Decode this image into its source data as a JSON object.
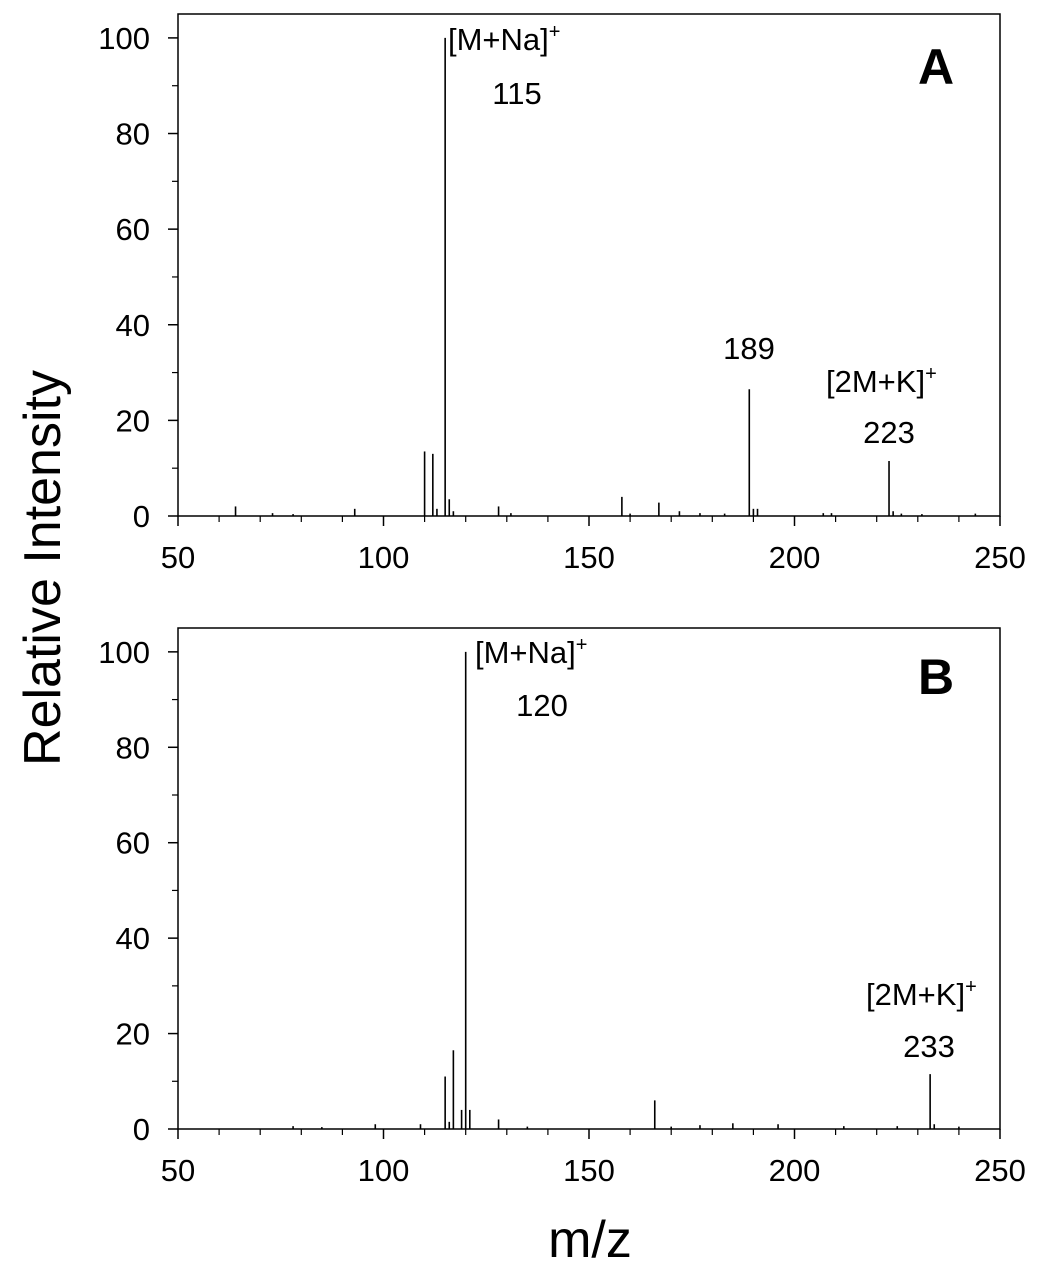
{
  "figure": {
    "ylabel": "Relative Intensity",
    "xlabel": "m/z"
  },
  "chart_data": [
    {
      "type": "bar",
      "panel_label": "A",
      "xlim": [
        50,
        250
      ],
      "ylim": [
        0,
        105
      ],
      "xticks": [
        50,
        100,
        150,
        200,
        250
      ],
      "yticks": [
        0,
        20,
        40,
        60,
        80,
        100
      ],
      "grid": false,
      "peaks": [
        {
          "x": 64,
          "y": 2
        },
        {
          "x": 73,
          "y": 0.6
        },
        {
          "x": 78,
          "y": 0.4
        },
        {
          "x": 93,
          "y": 1.5
        },
        {
          "x": 110,
          "y": 13.5
        },
        {
          "x": 112,
          "y": 13
        },
        {
          "x": 113,
          "y": 1.5
        },
        {
          "x": 115,
          "y": 100
        },
        {
          "x": 116,
          "y": 3.5
        },
        {
          "x": 117,
          "y": 1
        },
        {
          "x": 128,
          "y": 2
        },
        {
          "x": 131,
          "y": 0.6
        },
        {
          "x": 158,
          "y": 4
        },
        {
          "x": 160,
          "y": 0.5
        },
        {
          "x": 167,
          "y": 2.8
        },
        {
          "x": 172,
          "y": 1
        },
        {
          "x": 177,
          "y": 0.6
        },
        {
          "x": 183,
          "y": 0.5
        },
        {
          "x": 189,
          "y": 26.5
        },
        {
          "x": 190,
          "y": 1.5
        },
        {
          "x": 191,
          "y": 1.5
        },
        {
          "x": 207,
          "y": 0.6
        },
        {
          "x": 209,
          "y": 0.6
        },
        {
          "x": 223,
          "y": 11.5
        },
        {
          "x": 224,
          "y": 1
        },
        {
          "x": 226,
          "y": 0.5
        },
        {
          "x": 231,
          "y": 0.4
        },
        {
          "x": 244,
          "y": 0.5
        }
      ],
      "annotations": [
        {
          "id": "a-mna-label",
          "text": "[M+Na]",
          "sup": "+",
          "x": 115
        },
        {
          "id": "a-115",
          "text": "115",
          "x": 115
        },
        {
          "id": "a-189",
          "text": "189",
          "x": 189
        },
        {
          "id": "a-2mk-label",
          "text": "[2M+K]",
          "sup": "+",
          "x": 223
        },
        {
          "id": "a-223",
          "text": "223",
          "x": 223
        }
      ]
    },
    {
      "type": "bar",
      "panel_label": "B",
      "xlim": [
        50,
        250
      ],
      "ylim": [
        0,
        105
      ],
      "xticks": [
        50,
        100,
        150,
        200,
        250
      ],
      "yticks": [
        0,
        20,
        40,
        60,
        80,
        100
      ],
      "grid": false,
      "peaks": [
        {
          "x": 78,
          "y": 0.6
        },
        {
          "x": 85,
          "y": 0.4
        },
        {
          "x": 98,
          "y": 1
        },
        {
          "x": 109,
          "y": 1
        },
        {
          "x": 115,
          "y": 11
        },
        {
          "x": 116,
          "y": 1.5
        },
        {
          "x": 117,
          "y": 16.5
        },
        {
          "x": 119,
          "y": 4
        },
        {
          "x": 120,
          "y": 100
        },
        {
          "x": 121,
          "y": 4
        },
        {
          "x": 128,
          "y": 2
        },
        {
          "x": 135,
          "y": 0.5
        },
        {
          "x": 166,
          "y": 6
        },
        {
          "x": 170,
          "y": 0.5
        },
        {
          "x": 177,
          "y": 0.8
        },
        {
          "x": 185,
          "y": 1.2
        },
        {
          "x": 196,
          "y": 1
        },
        {
          "x": 212,
          "y": 0.6
        },
        {
          "x": 225,
          "y": 0.6
        },
        {
          "x": 233,
          "y": 11.5
        },
        {
          "x": 234,
          "y": 1
        },
        {
          "x": 240,
          "y": 0.5
        }
      ],
      "annotations": [
        {
          "id": "b-mna-label",
          "text": "[M+Na]",
          "sup": "+",
          "x": 120
        },
        {
          "id": "b-120",
          "text": "120",
          "x": 120
        },
        {
          "id": "b-2mk-label",
          "text": "[2M+K]",
          "sup": "+",
          "x": 233
        },
        {
          "id": "b-233",
          "text": "233",
          "x": 233
        }
      ]
    }
  ]
}
